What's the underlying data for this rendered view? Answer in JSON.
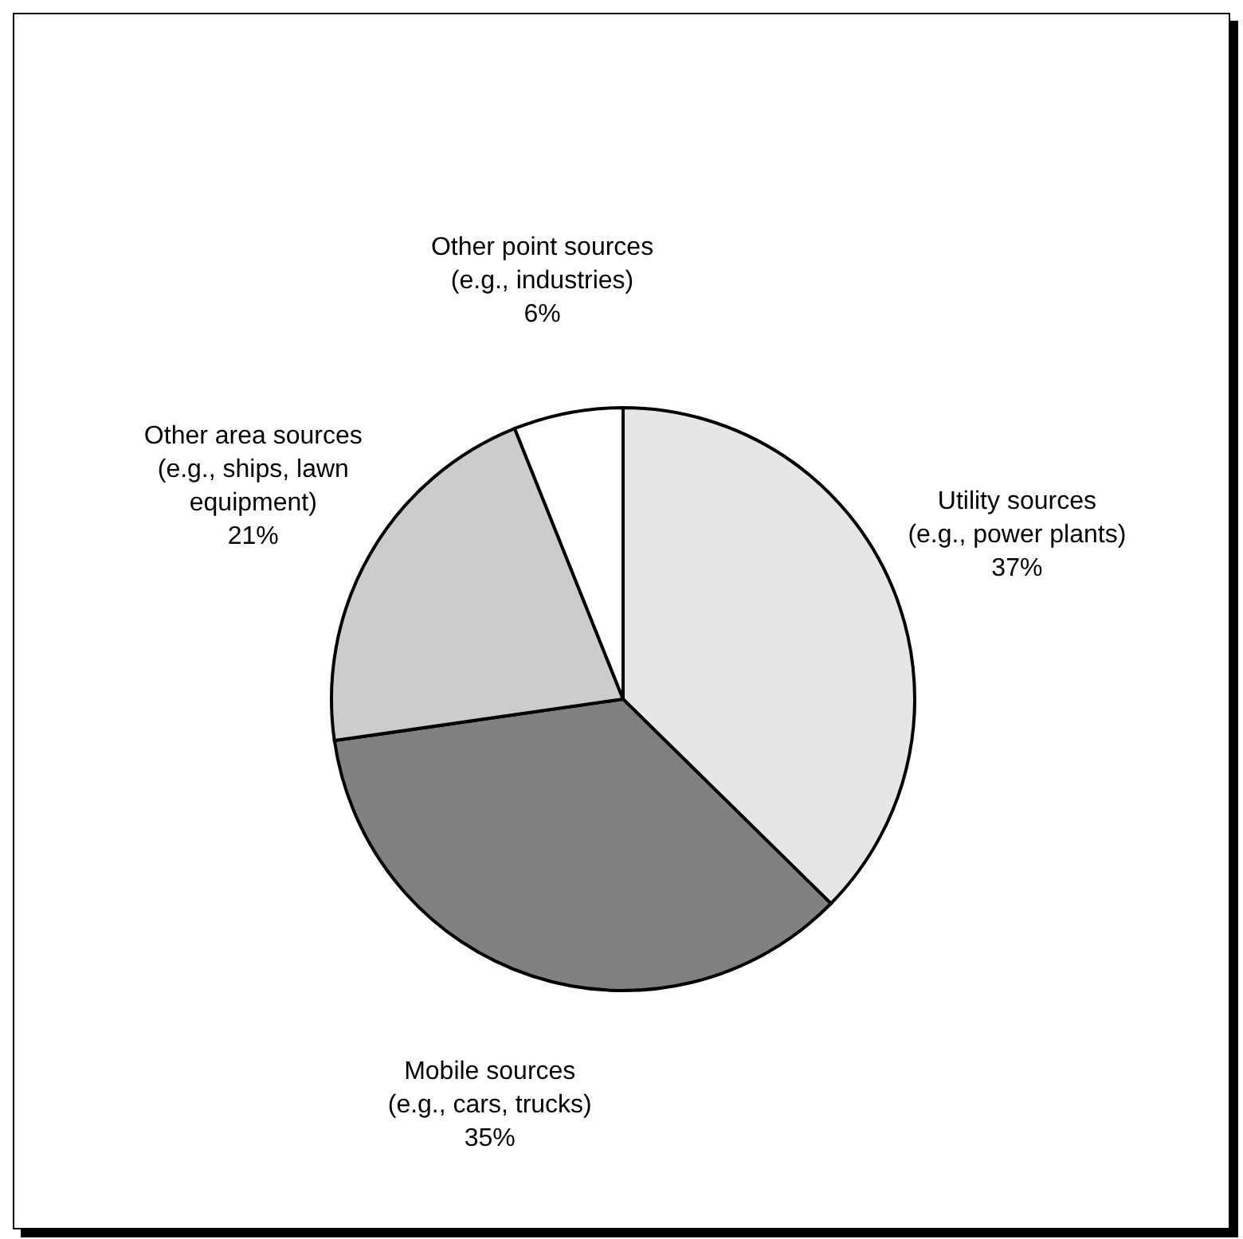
{
  "chart_data": {
    "type": "pie",
    "categories": [
      "Utility sources\n(e.g., power plants)",
      "Mobile sources\n(e.g., cars, trucks)",
      "Other area sources\n(e.g., ships, lawn\nequipment)",
      "Other point sources\n(e.g., industries)"
    ],
    "values": [
      37,
      35,
      21,
      6
    ],
    "value_labels": [
      "37%",
      "35%",
      "21%",
      "6%"
    ],
    "colors": [
      "#e6e6e6",
      "#808080",
      "#cccccc",
      "#ffffff"
    ],
    "legend": false
  }
}
